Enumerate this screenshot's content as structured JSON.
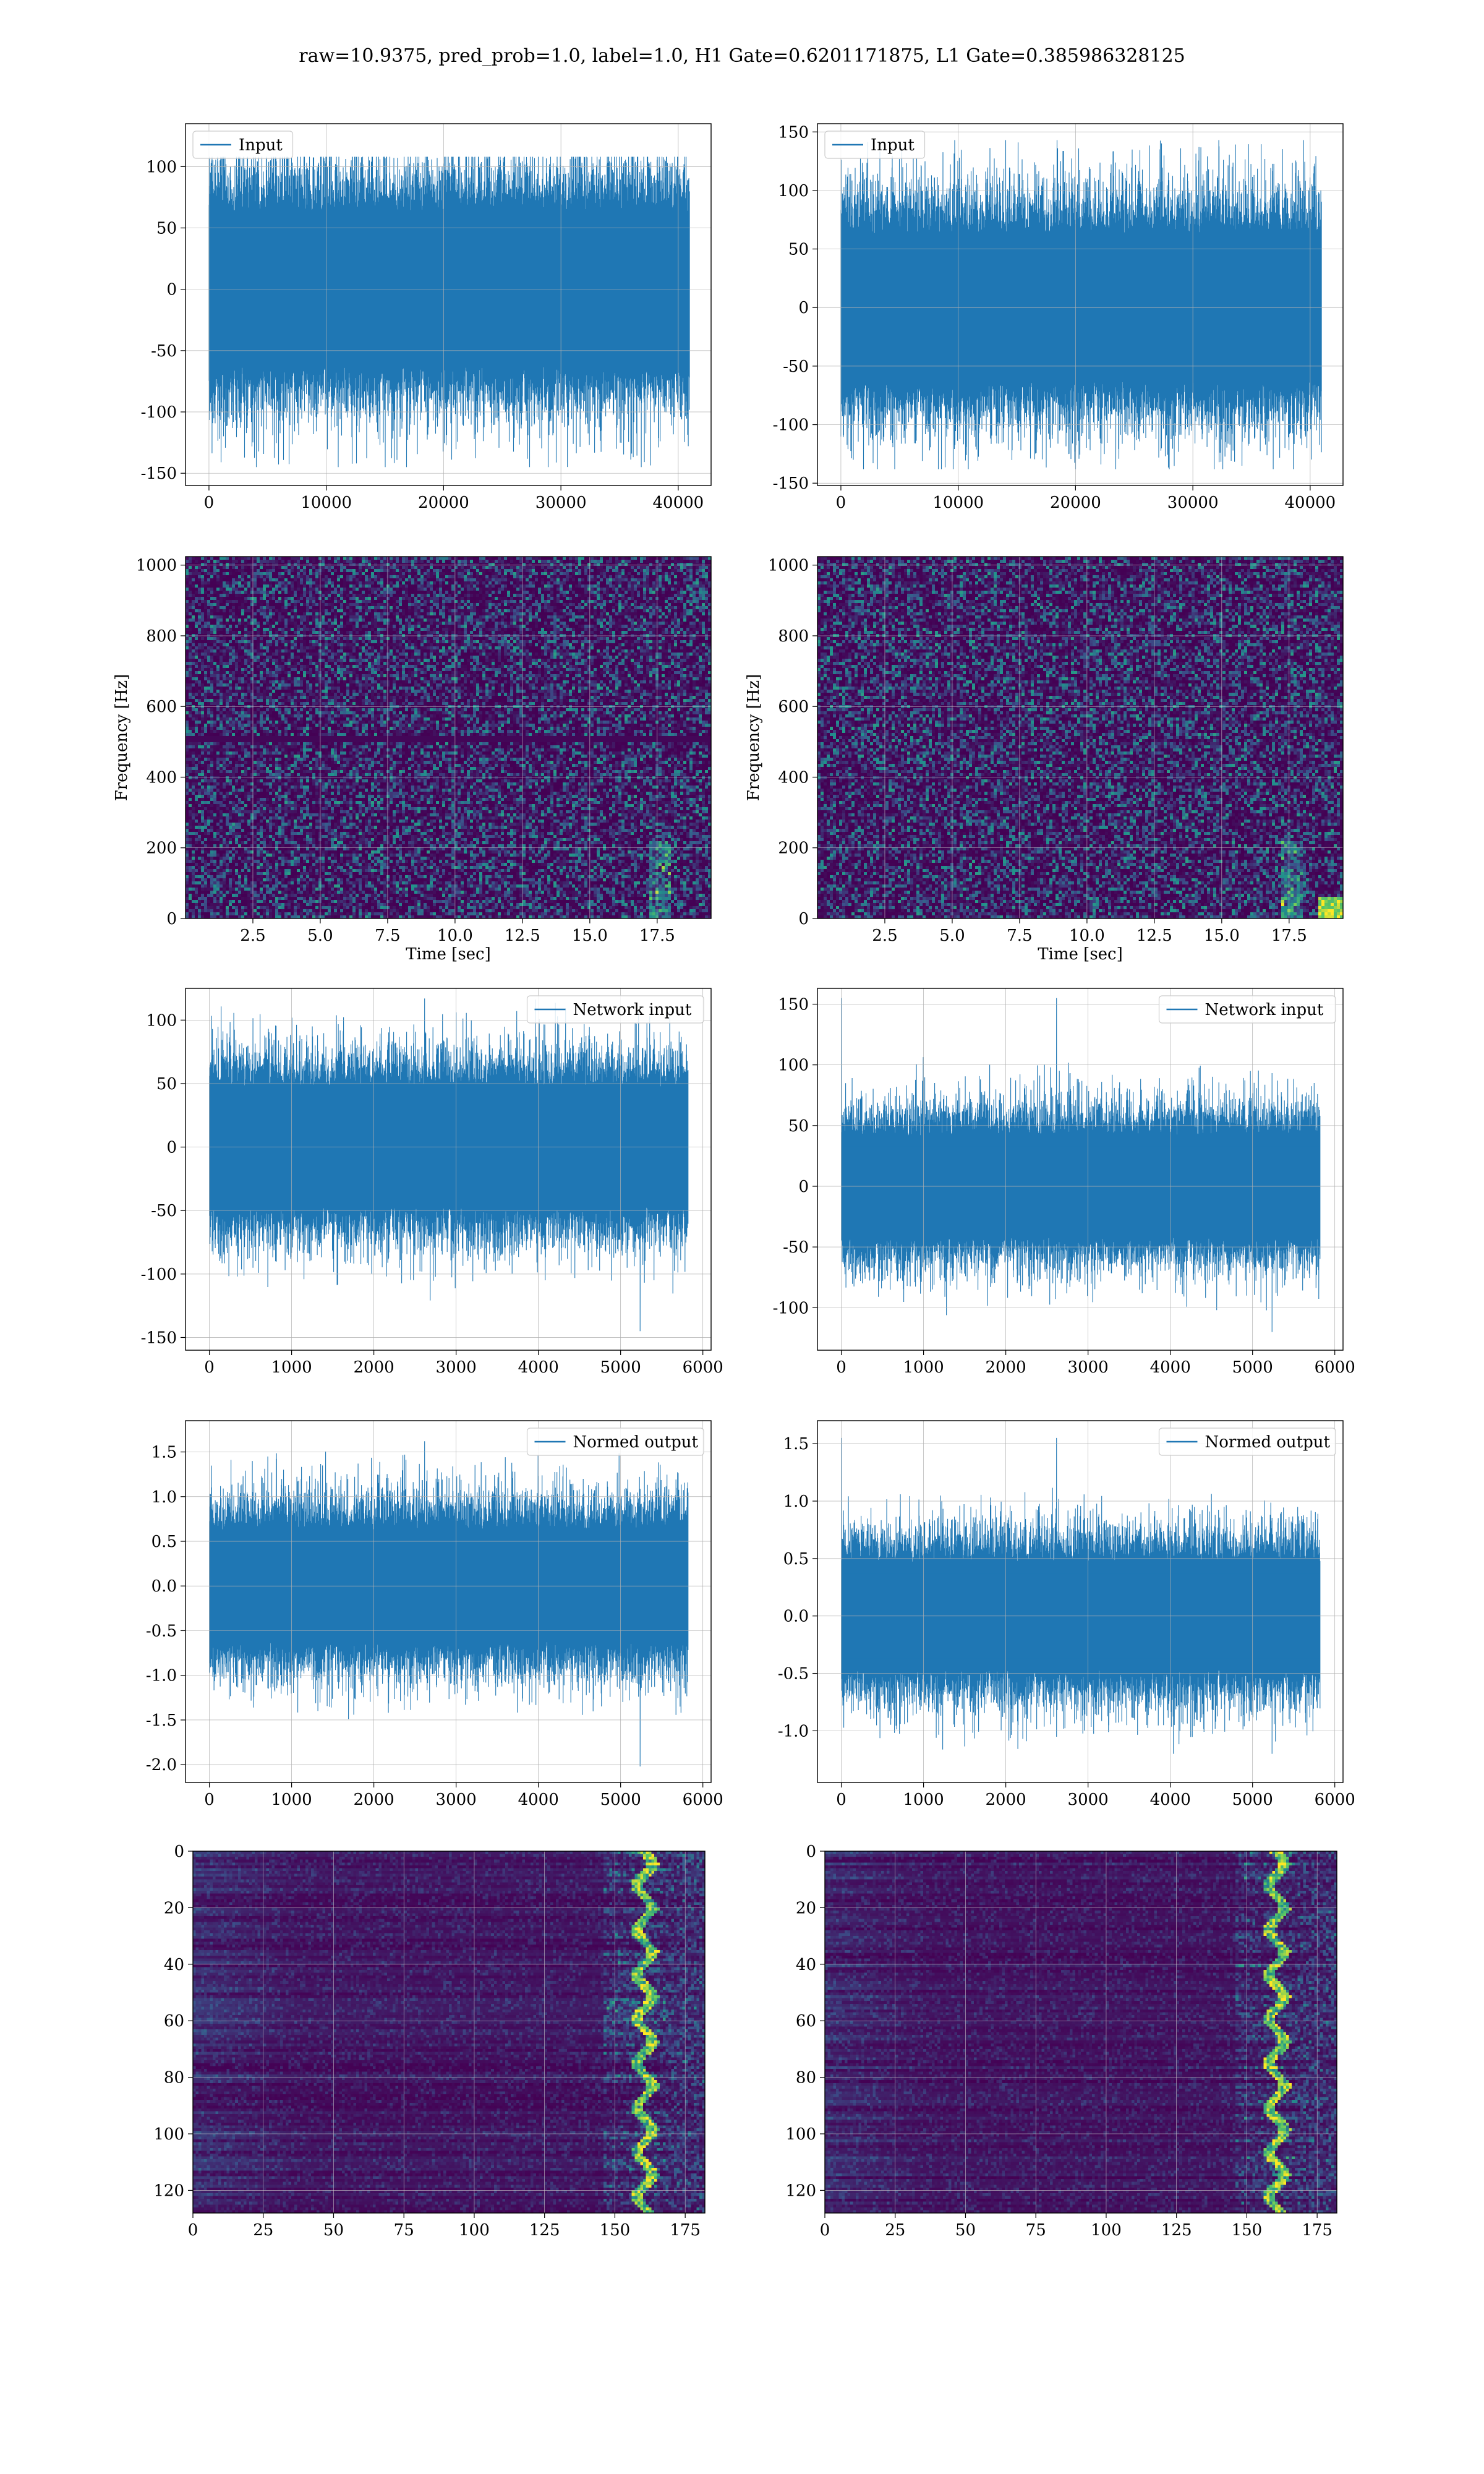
{
  "figure": {
    "title": "raw=10.9375, pred_prob=1.0, label=1.0, H1 Gate=0.6201171875, L1 Gate=0.385986328125"
  },
  "colors": {
    "line": "#1f77b4",
    "grid": "#b0b0b0",
    "viridis_low": "#440154",
    "viridis_mid": "#21918c",
    "viridis_high": "#fde725"
  },
  "chart_data": [
    {
      "id": "input-h1",
      "type": "line",
      "legend": [
        "Input"
      ],
      "legend_loc": "upper-left",
      "xlim": [
        -2000,
        42800
      ],
      "ylim": [
        -160,
        135
      ],
      "xticks": [
        0,
        10000,
        20000,
        30000,
        40000
      ],
      "yticks": [
        -150,
        -100,
        -50,
        0,
        50,
        100
      ],
      "n_samples": 40960,
      "band": [
        -60,
        60
      ],
      "peak_max": 108,
      "peak_min": -145,
      "xlabel": "",
      "ylabel": "",
      "grid": true
    },
    {
      "id": "input-l1",
      "type": "line",
      "legend": [
        "Input"
      ],
      "legend_loc": "upper-left",
      "xlim": [
        -2000,
        42800
      ],
      "ylim": [
        -152,
        157
      ],
      "xticks": [
        0,
        10000,
        20000,
        30000,
        40000
      ],
      "yticks": [
        -150,
        -100,
        -50,
        0,
        50,
        100,
        150
      ],
      "n_samples": 40960,
      "band": [
        -60,
        60
      ],
      "peak_max": 143,
      "peak_min": -138,
      "xlabel": "",
      "ylabel": "",
      "grid": true
    },
    {
      "id": "spec-h1",
      "type": "heatmap",
      "xlim": [
        0,
        19.5
      ],
      "ylim": [
        0,
        1024
      ],
      "xticks": [
        2.5,
        5.0,
        7.5,
        10.0,
        12.5,
        15.0,
        17.5
      ],
      "yticks": [
        0,
        200,
        400,
        600,
        800,
        1000
      ],
      "xlabel": "Time [sec]",
      "ylabel": "Frequency [Hz]",
      "grid": true,
      "colormap": "viridis"
    },
    {
      "id": "spec-l1",
      "type": "heatmap",
      "xlim": [
        0,
        19.5
      ],
      "ylim": [
        0,
        1024
      ],
      "xticks": [
        2.5,
        5.0,
        7.5,
        10.0,
        12.5,
        15.0,
        17.5
      ],
      "yticks": [
        0,
        200,
        400,
        600,
        800,
        1000
      ],
      "xlabel": "Time [sec]",
      "ylabel": "Frequency [Hz]",
      "grid": true,
      "colormap": "viridis"
    },
    {
      "id": "network-h1",
      "type": "line",
      "legend": [
        "Network input"
      ],
      "legend_loc": "upper-right",
      "xlim": [
        -290,
        6100
      ],
      "ylim": [
        -160,
        125
      ],
      "xticks": [
        0,
        1000,
        2000,
        3000,
        4000,
        5000,
        6000
      ],
      "yticks": [
        -150,
        -100,
        -50,
        0,
        50,
        100
      ],
      "n_samples": 5820,
      "band": [
        -45,
        45
      ],
      "peak_max": 117,
      "peak_min": -145,
      "xlabel": "",
      "ylabel": "",
      "grid": true
    },
    {
      "id": "network-l1",
      "type": "line",
      "legend": [
        "Network input"
      ],
      "legend_loc": "upper-right",
      "xlim": [
        -290,
        6100
      ],
      "ylim": [
        -135,
        163
      ],
      "xticks": [
        0,
        1000,
        2000,
        3000,
        4000,
        5000,
        6000
      ],
      "yticks": [
        -100,
        -50,
        0,
        50,
        100,
        150
      ],
      "n_samples": 5820,
      "band": [
        -40,
        40
      ],
      "peak_max": 155,
      "peak_min": -120,
      "xlabel": "",
      "ylabel": "",
      "grid": true
    },
    {
      "id": "normed-h1",
      "type": "line",
      "legend": [
        "Normed output"
      ],
      "legend_loc": "upper-right",
      "xlim": [
        -290,
        6100
      ],
      "ylim": [
        -2.2,
        1.85
      ],
      "xticks": [
        0,
        1000,
        2000,
        3000,
        4000,
        5000,
        6000
      ],
      "yticks": [
        -2.0,
        -1.5,
        -1.0,
        -0.5,
        0.0,
        0.5,
        1.0,
        1.5
      ],
      "n_samples": 5820,
      "band": [
        -0.6,
        0.6
      ],
      "peak_max": 1.62,
      "peak_min": -2.02,
      "xlabel": "",
      "ylabel": "",
      "grid": true
    },
    {
      "id": "normed-l1",
      "type": "line",
      "legend": [
        "Normed output"
      ],
      "legend_loc": "upper-right",
      "xlim": [
        -290,
        6100
      ],
      "ylim": [
        -1.45,
        1.7
      ],
      "xticks": [
        0,
        1000,
        2000,
        3000,
        4000,
        5000,
        6000
      ],
      "yticks": [
        -1.0,
        -0.5,
        0.0,
        0.5,
        1.0,
        1.5
      ],
      "n_samples": 5820,
      "band": [
        -0.45,
        0.45
      ],
      "peak_max": 1.55,
      "peak_min": -1.2,
      "xlabel": "",
      "ylabel": "",
      "grid": true
    },
    {
      "id": "features-h1",
      "type": "heatmap",
      "xlim": [
        0,
        182
      ],
      "ylim": [
        128,
        0
      ],
      "xticks": [
        0,
        25,
        50,
        75,
        100,
        125,
        150,
        175
      ],
      "yticks": [
        0,
        20,
        40,
        60,
        80,
        100,
        120
      ],
      "rows": 128,
      "cols": 182,
      "xlabel": "",
      "ylabel": "",
      "grid": true,
      "colormap": "viridis"
    },
    {
      "id": "features-l1",
      "type": "heatmap",
      "xlim": [
        0,
        182
      ],
      "ylim": [
        128,
        0
      ],
      "xticks": [
        0,
        25,
        50,
        75,
        100,
        125,
        150,
        175
      ],
      "yticks": [
        0,
        20,
        40,
        60,
        80,
        100,
        120
      ],
      "rows": 128,
      "cols": 182,
      "xlabel": "",
      "ylabel": "",
      "grid": true,
      "colormap": "viridis"
    }
  ]
}
